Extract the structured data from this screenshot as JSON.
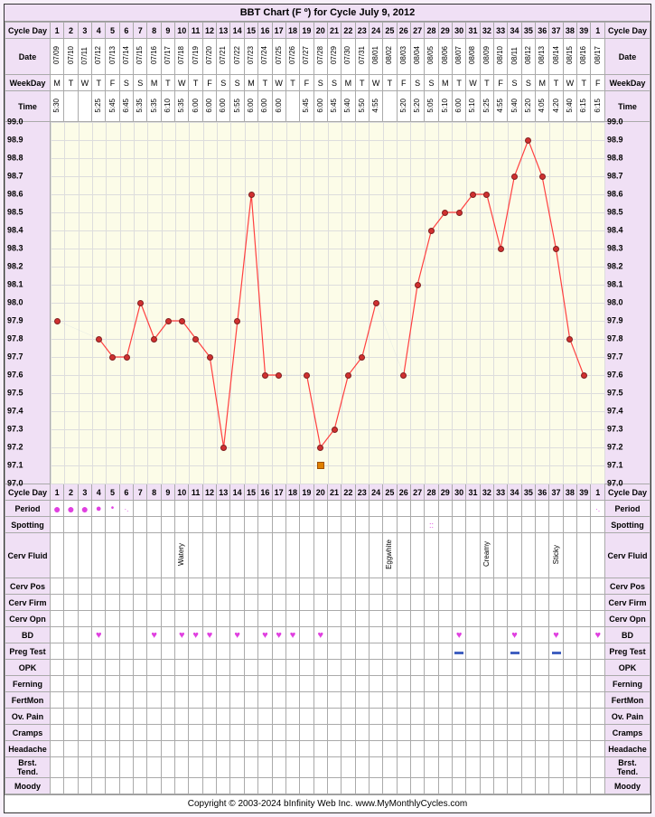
{
  "title": "BBT Chart (F º) for Cycle July 9, 2012",
  "footer": "Copyright © 2003-2024 bInfinity Web Inc.    www.MyMonthlyCycles.com",
  "cols": 40,
  "row_labels_left": [
    "Cycle Day",
    "Date",
    "WeekDay",
    "Time"
  ],
  "row_labels_right": [
    "Cycle Day",
    "Date",
    "WeekDay",
    "Time"
  ],
  "cycle_days": [
    "1",
    "2",
    "3",
    "4",
    "5",
    "6",
    "7",
    "8",
    "9",
    "10",
    "11",
    "12",
    "13",
    "14",
    "15",
    "16",
    "17",
    "18",
    "19",
    "20",
    "21",
    "22",
    "23",
    "24",
    "25",
    "26",
    "27",
    "28",
    "29",
    "30",
    "31",
    "32",
    "33",
    "34",
    "35",
    "36",
    "37",
    "38",
    "39",
    "1"
  ],
  "dates": [
    "07/09",
    "07/10",
    "07/11",
    "07/12",
    "07/13",
    "07/14",
    "07/15",
    "07/16",
    "07/17",
    "07/18",
    "07/19",
    "07/20",
    "07/21",
    "07/22",
    "07/23",
    "07/24",
    "07/25",
    "07/26",
    "07/27",
    "07/28",
    "07/29",
    "07/30",
    "07/31",
    "08/01",
    "08/02",
    "08/03",
    "08/04",
    "08/05",
    "08/06",
    "08/07",
    "08/08",
    "08/09",
    "08/10",
    "08/11",
    "08/12",
    "08/13",
    "08/14",
    "08/15",
    "08/16",
    "08/17"
  ],
  "weekdays": [
    "M",
    "T",
    "W",
    "T",
    "F",
    "S",
    "S",
    "M",
    "T",
    "W",
    "T",
    "F",
    "S",
    "S",
    "M",
    "T",
    "W",
    "T",
    "F",
    "S",
    "S",
    "M",
    "T",
    "W",
    "T",
    "F",
    "S",
    "S",
    "M",
    "T",
    "W",
    "T",
    "F",
    "S",
    "S",
    "M",
    "T",
    "W",
    "T",
    "F"
  ],
  "times": [
    "5:30",
    "",
    "",
    "5:25",
    "5:45",
    "6:45",
    "5:35",
    "5:35",
    "6:10",
    "5:35",
    "6:00",
    "6:00",
    "6:00",
    "5:55",
    "6:00",
    "6:00",
    "6:00",
    "",
    "5:45",
    "6:00",
    "5:45",
    "5:40",
    "5:50",
    "4:55",
    "",
    "5:20",
    "5:20",
    "5:05",
    "5:10",
    "6:00",
    "5:10",
    "5:25",
    "4:55",
    "5:40",
    "5:20",
    "4:05",
    "4:20",
    "5:40",
    "6:15",
    "6:15"
  ],
  "temp_scale": {
    "min": 97.0,
    "max": 99.0,
    "step": 0.1,
    "labels": [
      "99.0",
      "98.9",
      "98.8",
      "98.7",
      "98.6",
      "98.5",
      "98.4",
      "98.3",
      "98.2",
      "98.1",
      "98.0",
      "97.9",
      "97.8",
      "97.7",
      "97.6",
      "97.5",
      "97.4",
      "97.3",
      "97.2",
      "97.1",
      "97.0"
    ]
  },
  "temps": [
    97.9,
    null,
    null,
    97.8,
    97.7,
    97.7,
    98.0,
    97.8,
    97.9,
    97.9,
    97.8,
    97.7,
    97.2,
    97.9,
    98.6,
    97.6,
    97.6,
    null,
    97.6,
    97.2,
    97.3,
    97.6,
    97.7,
    98.0,
    null,
    97.6,
    98.1,
    98.4,
    98.5,
    98.5,
    98.6,
    98.6,
    98.3,
    98.7,
    98.9,
    98.7,
    98.3,
    97.8,
    97.6,
    null
  ],
  "ovulation_day": 20,
  "bottom_rows": [
    {
      "label": "Cycle Day",
      "type": "num",
      "data": [
        "1",
        "2",
        "3",
        "4",
        "5",
        "6",
        "7",
        "8",
        "9",
        "10",
        "11",
        "12",
        "13",
        "14",
        "15",
        "16",
        "17",
        "18",
        "19",
        "20",
        "21",
        "22",
        "23",
        "24",
        "25",
        "26",
        "27",
        "28",
        "29",
        "30",
        "31",
        "32",
        "33",
        "34",
        "35",
        "36",
        "37",
        "38",
        "39",
        "1"
      ]
    },
    {
      "label": "Period",
      "type": "period",
      "data": [
        "big",
        "big",
        "big",
        "med",
        "small",
        "tiny",
        "",
        "",
        "",
        "",
        "",
        "",
        "",
        "",
        "",
        "",
        "",
        "",
        "",
        "",
        "",
        "",
        "",
        "",
        "",
        "",
        "",
        "",
        "",
        "",
        "",
        "",
        "",
        "",
        "",
        "",
        "",
        "",
        "",
        "tiny"
      ]
    },
    {
      "label": "Spotting",
      "type": "spot",
      "data": [
        "",
        "",
        "",
        "",
        "",
        "",
        "",
        "",
        "",
        "",
        "",
        "",
        "",
        "",
        "",
        "",
        "",
        "",
        "",
        "",
        "",
        "",
        "",
        "",
        "",
        "",
        "",
        "yes",
        "",
        "",
        "",
        "",
        "",
        "",
        "",
        "",
        "",
        "",
        "",
        ""
      ]
    },
    {
      "label": "Cerv Fluid",
      "type": "vert",
      "data": [
        "",
        "",
        "",
        "",
        "",
        "",
        "",
        "",
        "",
        "Watery",
        "",
        "",
        "",
        "",
        "",
        "",
        "",
        "",
        "",
        "",
        "",
        "",
        "",
        "",
        "Eggwhite",
        "",
        "",
        "",
        "",
        "",
        "",
        "Creamy",
        "",
        "",
        "",
        "",
        "Sticky",
        "",
        "",
        ""
      ]
    },
    {
      "label": "Cerv Pos",
      "type": "blank",
      "data": []
    },
    {
      "label": "Cerv Firm",
      "type": "blank",
      "data": []
    },
    {
      "label": "Cerv Opn",
      "type": "blank",
      "data": []
    },
    {
      "label": "BD",
      "type": "heart",
      "data": [
        "",
        "",
        "",
        "y",
        "",
        "",
        "",
        "y",
        "",
        "y",
        "y",
        "y",
        "",
        "y",
        "",
        "y",
        "y",
        "y",
        "",
        "y",
        "",
        "",
        "",
        "",
        "",
        "",
        "",
        "",
        "",
        "y",
        "",
        "",
        "",
        "y",
        "",
        "",
        "y",
        "",
        "",
        "y"
      ]
    },
    {
      "label": "Preg Test",
      "type": "bar",
      "data": [
        "",
        "",
        "",
        "",
        "",
        "",
        "",
        "",
        "",
        "",
        "",
        "",
        "",
        "",
        "",
        "",
        "",
        "",
        "",
        "",
        "",
        "",
        "",
        "",
        "",
        "",
        "",
        "",
        "",
        "y",
        "",
        "",
        "",
        "y",
        "",
        "",
        "y",
        "",
        "",
        ""
      ]
    },
    {
      "label": "OPK",
      "type": "blank",
      "data": []
    },
    {
      "label": "Ferning",
      "type": "blank",
      "data": []
    },
    {
      "label": "FertMon",
      "type": "blank",
      "data": []
    },
    {
      "label": "Ov. Pain",
      "type": "blank",
      "data": []
    },
    {
      "label": "Cramps",
      "type": "blank",
      "data": []
    },
    {
      "label": "Headache",
      "type": "blank",
      "data": []
    },
    {
      "label": "Brst. Tend.",
      "type": "blank",
      "data": []
    },
    {
      "label": "Moody",
      "type": "blank",
      "data": []
    }
  ],
  "colors": {
    "line": "#ff4040",
    "dashed": "#6080d0",
    "marker": "#d03030",
    "ov_box": "#e08000",
    "period": "#e040e0",
    "chart_bg": "#fcfce8"
  }
}
